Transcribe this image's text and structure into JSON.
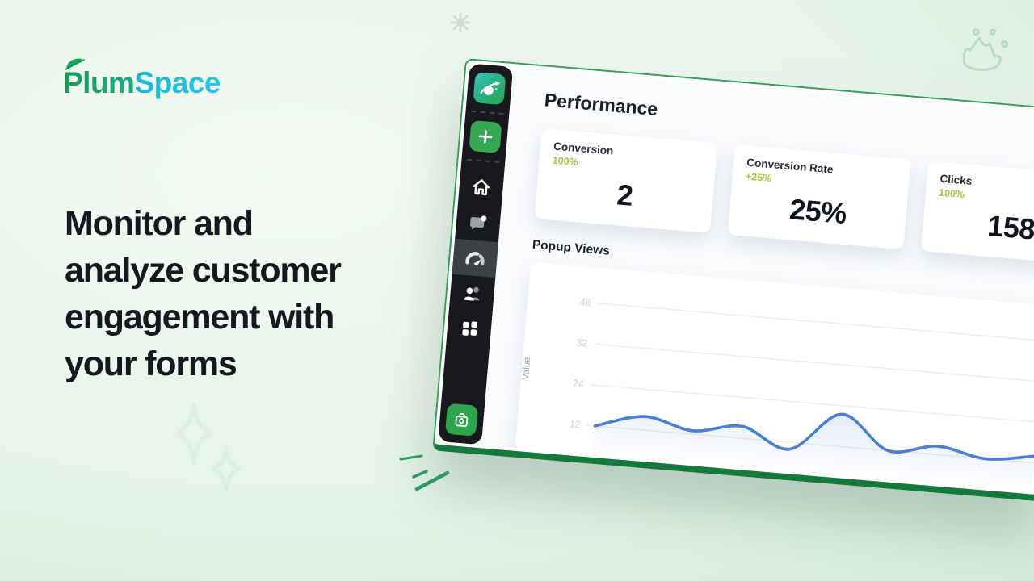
{
  "logo": {
    "part1": "Plum",
    "part2": "Space"
  },
  "headline": {
    "lines": [
      "Monitor and",
      "analyze customer",
      "engagement with",
      "your forms"
    ]
  },
  "dashboard": {
    "title": "Performance",
    "cards": [
      {
        "label": "Conversion",
        "delta": "100%",
        "value": "2"
      },
      {
        "label": "Conversion Rate",
        "delta": "+25%",
        "value": "25%"
      },
      {
        "label": "Clicks",
        "delta": "100%",
        "value": "158"
      }
    ]
  },
  "sidebar": {
    "buttons": [
      {
        "name": "plumspace-logo",
        "icon": "rocket-planet-icon"
      },
      {
        "name": "create-new",
        "icon": "plus-icon"
      },
      {
        "name": "home",
        "icon": "home-icon"
      },
      {
        "name": "messages",
        "icon": "chat-bubble-icon"
      },
      {
        "name": "performance",
        "icon": "gauge-icon",
        "active": true
      },
      {
        "name": "customers",
        "icon": "users-icon"
      },
      {
        "name": "apps",
        "icon": "grid-icon"
      },
      {
        "name": "shop",
        "icon": "briefcase-icon"
      }
    ]
  },
  "decorations": {
    "icons": [
      "sparkle-asterisk-icon",
      "crown-doodle-icon",
      "diamond-sparkle-icon",
      "pen-strokes-icon"
    ]
  },
  "colors": {
    "brand_green": "#1aa65b",
    "brand_cyan": "#1fc1df",
    "lime_delta": "#a6c53c",
    "chart_line": "#4a7fd8",
    "frame_green": "#2f9e57",
    "frame_green_dark": "#147a3c",
    "sidebar_bg": "#17191d",
    "active_item_bg": "#3c4147"
  },
  "chart_data": {
    "type": "line",
    "title": "Popup Views",
    "ylabel": "Value",
    "yticks": [
      48,
      32,
      24,
      12
    ],
    "values": [
      12,
      16,
      13,
      15.5,
      10,
      21.5,
      12,
      14.5,
      12,
      14
    ],
    "ylim": [
      8,
      52
    ],
    "grid": true,
    "legend": false,
    "line_color": "#4a7fd8",
    "fill_color": "rgba(88,130,212,0.16)"
  }
}
